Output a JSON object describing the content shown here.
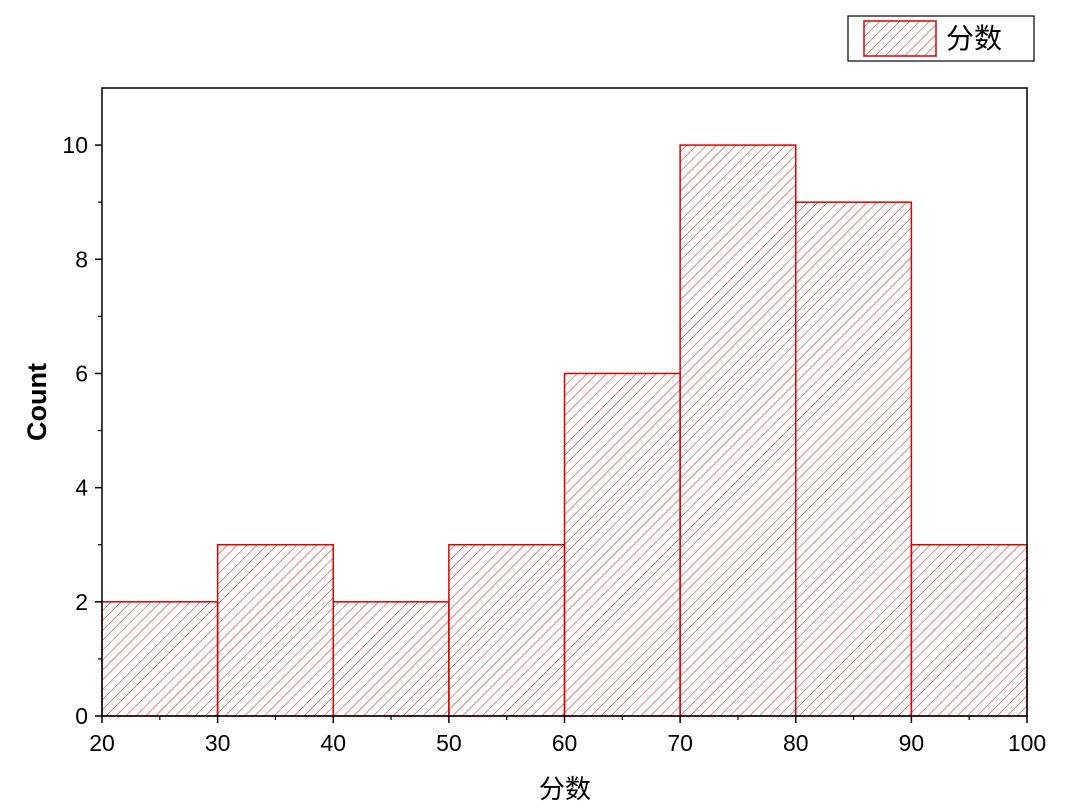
{
  "chart_data": {
    "type": "bar",
    "bins": [
      [
        20,
        30
      ],
      [
        30,
        40
      ],
      [
        40,
        50
      ],
      [
        50,
        60
      ],
      [
        60,
        70
      ],
      [
        70,
        80
      ],
      [
        80,
        90
      ],
      [
        90,
        100
      ]
    ],
    "values": [
      2,
      3,
      2,
      3,
      6,
      10,
      9,
      3
    ],
    "xlabel": "分数",
    "ylabel": "Count",
    "xlim": [
      20,
      100
    ],
    "ylim": [
      0,
      11
    ],
    "xticks": [
      20,
      30,
      40,
      50,
      60,
      70,
      80,
      90,
      100
    ],
    "yticks": [
      0,
      2,
      4,
      6,
      8,
      10
    ],
    "legend": {
      "label": "分数",
      "placement": "top-right, outside plot"
    },
    "bar_color": "#e00000",
    "fill_pattern": "diagonal hatch",
    "grid": false
  }
}
